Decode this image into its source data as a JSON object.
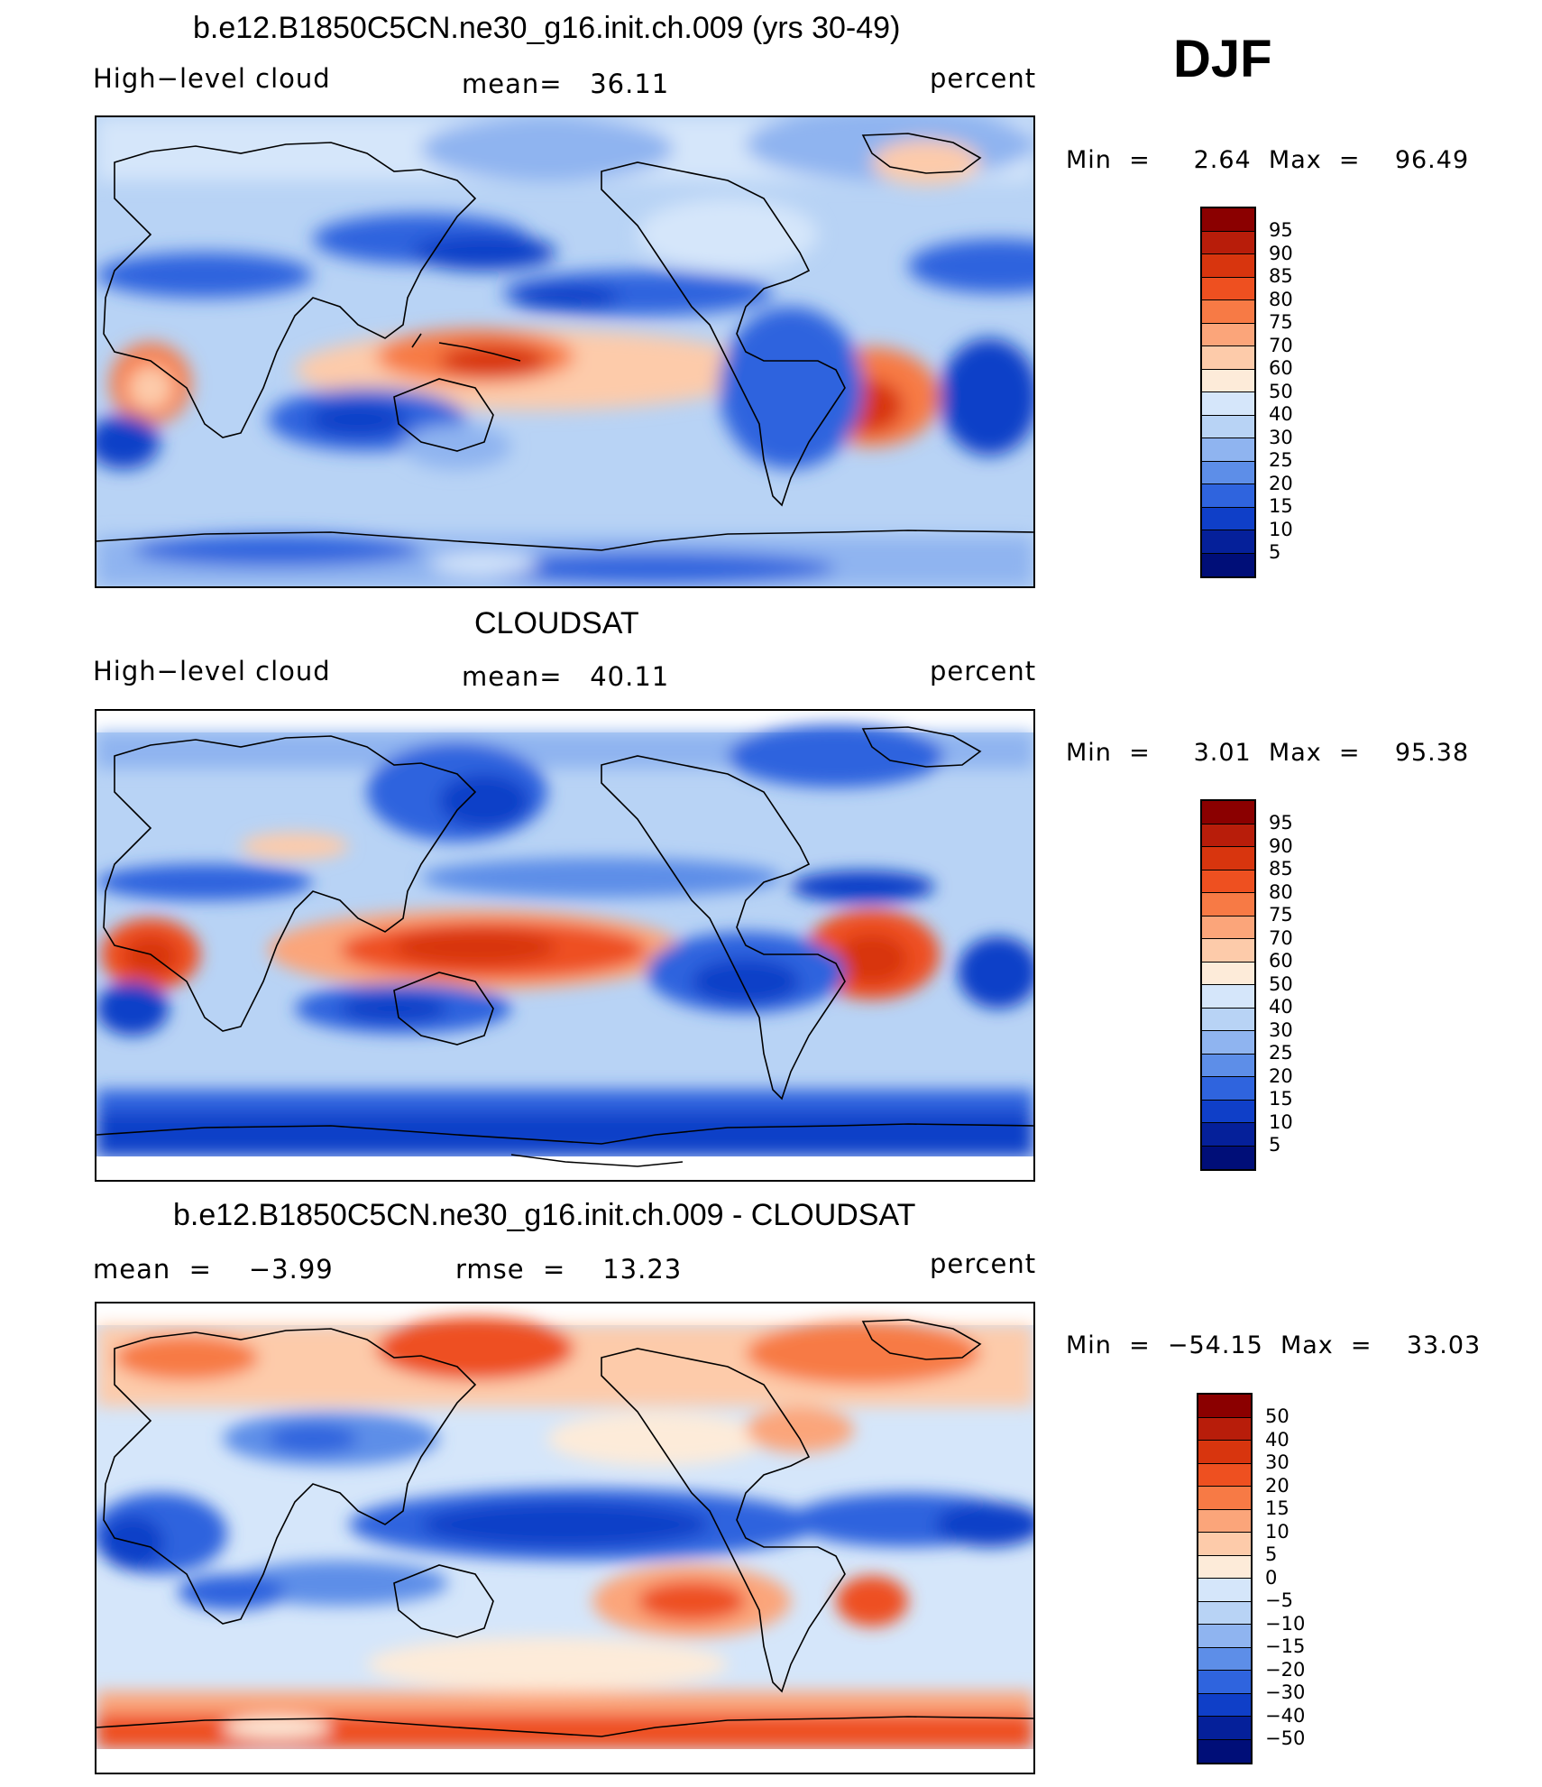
{
  "season": "DJF",
  "units": "percent",
  "variable": "High−level cloud",
  "map_data": {
    "projection": "cylindrical-equidistant",
    "center_longitude": 180,
    "coastlines": true,
    "colormap": "blue-white-red"
  },
  "panels": [
    {
      "title": "b.e12.B1850C5CN.ne30_g16.init.ch.009 (yrs 30-49)",
      "left_label": "High−level cloud",
      "center_label": "mean=   36.11",
      "right_label": "percent",
      "minmax": "Min  =     2.64  Max  =    96.49",
      "levels": [
        "95",
        "90",
        "85",
        "80",
        "75",
        "70",
        "60",
        "50",
        "40",
        "30",
        "25",
        "20",
        "15",
        "10",
        "5"
      ]
    },
    {
      "title": "CLOUDSAT",
      "left_label": "High−level cloud",
      "center_label": "mean=   40.11",
      "right_label": "percent",
      "minmax": "Min  =     3.01  Max  =    95.38",
      "levels": [
        "95",
        "90",
        "85",
        "80",
        "75",
        "70",
        "60",
        "50",
        "40",
        "30",
        "25",
        "20",
        "15",
        "10",
        "5"
      ]
    },
    {
      "title": "b.e12.B1850C5CN.ne30_g16.init.ch.009 - CLOUDSAT",
      "left_label": "mean  =    −3.99",
      "center_label": "rmse  =    13.23",
      "right_label": "percent",
      "minmax": "Min  =  −54.15  Max  =    33.03",
      "levels": [
        "50",
        "40",
        "30",
        "20",
        "15",
        "10",
        "5",
        "0",
        "−5",
        "−10",
        "−15",
        "−20",
        "−30",
        "−40",
        "−50"
      ]
    }
  ],
  "colors": {
    "scale": [
      "#8b0000",
      "#b81d0a",
      "#d8350e",
      "#ee5020",
      "#f77a45",
      "#fba57a",
      "#fdcbaa",
      "#fdebd9",
      "#d5e6fa",
      "#b8d3f5",
      "#8fb4f0",
      "#5d8ee8",
      "#2f64de",
      "#0f3fc8",
      "#05209a",
      "#000e78"
    ]
  }
}
